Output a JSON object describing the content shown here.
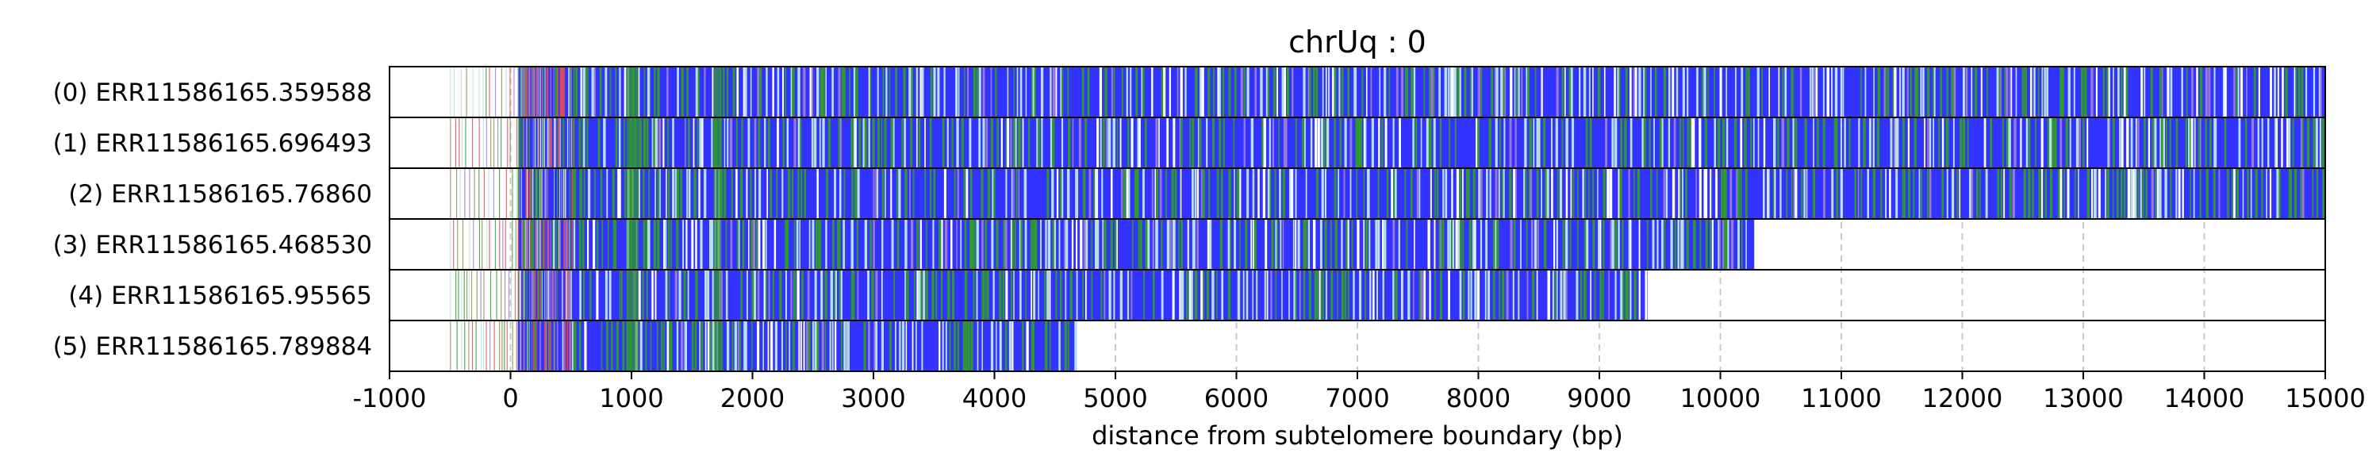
{
  "chart_data": {
    "type": "heatmap",
    "title": "chrUq : 0",
    "xlabel": "distance from subtelomere boundary (bp)",
    "ylabel": "",
    "xlim": [
      -1000,
      15000
    ],
    "xticks": [
      -1000,
      0,
      1000,
      2000,
      3000,
      4000,
      5000,
      6000,
      7000,
      8000,
      9000,
      10000,
      11000,
      12000,
      13000,
      14000,
      15000
    ],
    "grid": "vertical dashed",
    "colors": {
      "base": "#3333ff",
      "green": "#2e9a2e",
      "light": "#b8e0e0",
      "white": "#ffffff",
      "purple": "#9a78d6",
      "red": "#d94a5a",
      "olive": "#8a8a4a",
      "grid": "#c8c8c8"
    },
    "reads": [
      {
        "label": "(0) ERR11586165.359588",
        "start": -500,
        "end": 15000
      },
      {
        "label": "(1) ERR11586165.696493",
        "start": -500,
        "end": 15000
      },
      {
        "label": "(2) ERR11586165.76860",
        "start": -500,
        "end": 15000
      },
      {
        "label": "(3) ERR11586165.468530",
        "start": -500,
        "end": 10280
      },
      {
        "label": "(4) ERR11586165.95565",
        "start": -500,
        "end": 9400
      },
      {
        "label": "(5) ERR11586165.789884",
        "start": -500,
        "end": 4680
      }
    ]
  }
}
